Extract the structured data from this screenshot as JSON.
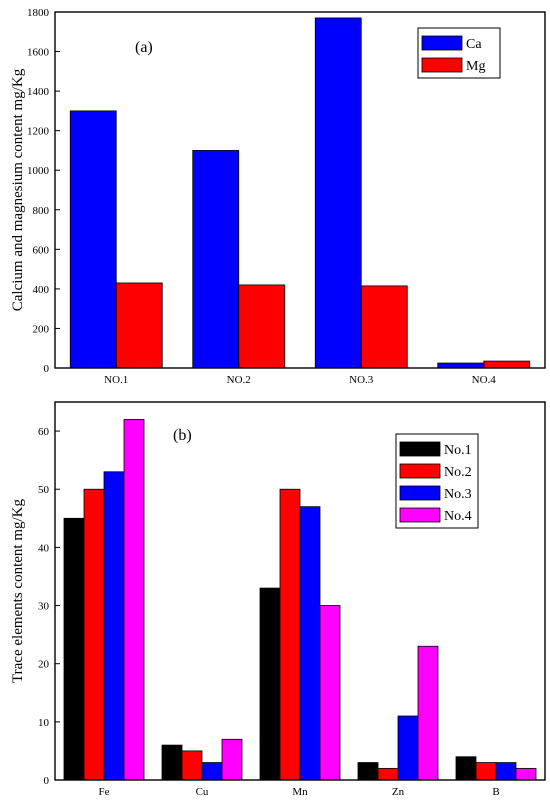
{
  "chart_data": [
    {
      "type": "bar",
      "panel_label": "(a)",
      "ylabel": "Calcium and magnesium content mg/Kg",
      "ylim": [
        0,
        1800
      ],
      "yticks": [
        0,
        200,
        400,
        600,
        800,
        1000,
        1200,
        1400,
        1600,
        1800
      ],
      "categories": [
        "NO.1",
        "NO.2",
        "NO.3",
        "NO.4"
      ],
      "series": [
        {
          "name": "Ca",
          "color": "#0000ff",
          "values": [
            1300,
            1100,
            1770,
            25
          ]
        },
        {
          "name": "Mg",
          "color": "#ff0000",
          "values": [
            430,
            420,
            415,
            35
          ]
        }
      ],
      "legend_position": "top-right"
    },
    {
      "type": "bar",
      "panel_label": "(b)",
      "ylabel": "Trace elements content mg/Kg",
      "ylim": [
        0,
        65
      ],
      "yticks": [
        0,
        10,
        20,
        30,
        40,
        50,
        60
      ],
      "categories": [
        "Fe",
        "Cu",
        "Mn",
        "Zn",
        "B"
      ],
      "series": [
        {
          "name": "No.1",
          "color": "#000000",
          "values": [
            45,
            6,
            33,
            3,
            4
          ]
        },
        {
          "name": "No.2",
          "color": "#ff0000",
          "values": [
            50,
            5,
            50,
            2,
            3
          ]
        },
        {
          "name": "No.3",
          "color": "#0000ff",
          "values": [
            53,
            3,
            47,
            11,
            3
          ]
        },
        {
          "name": "No.4",
          "color": "#ff00ff",
          "values": [
            62,
            7,
            30,
            23,
            2
          ]
        }
      ],
      "legend_position": "top-right"
    }
  ]
}
